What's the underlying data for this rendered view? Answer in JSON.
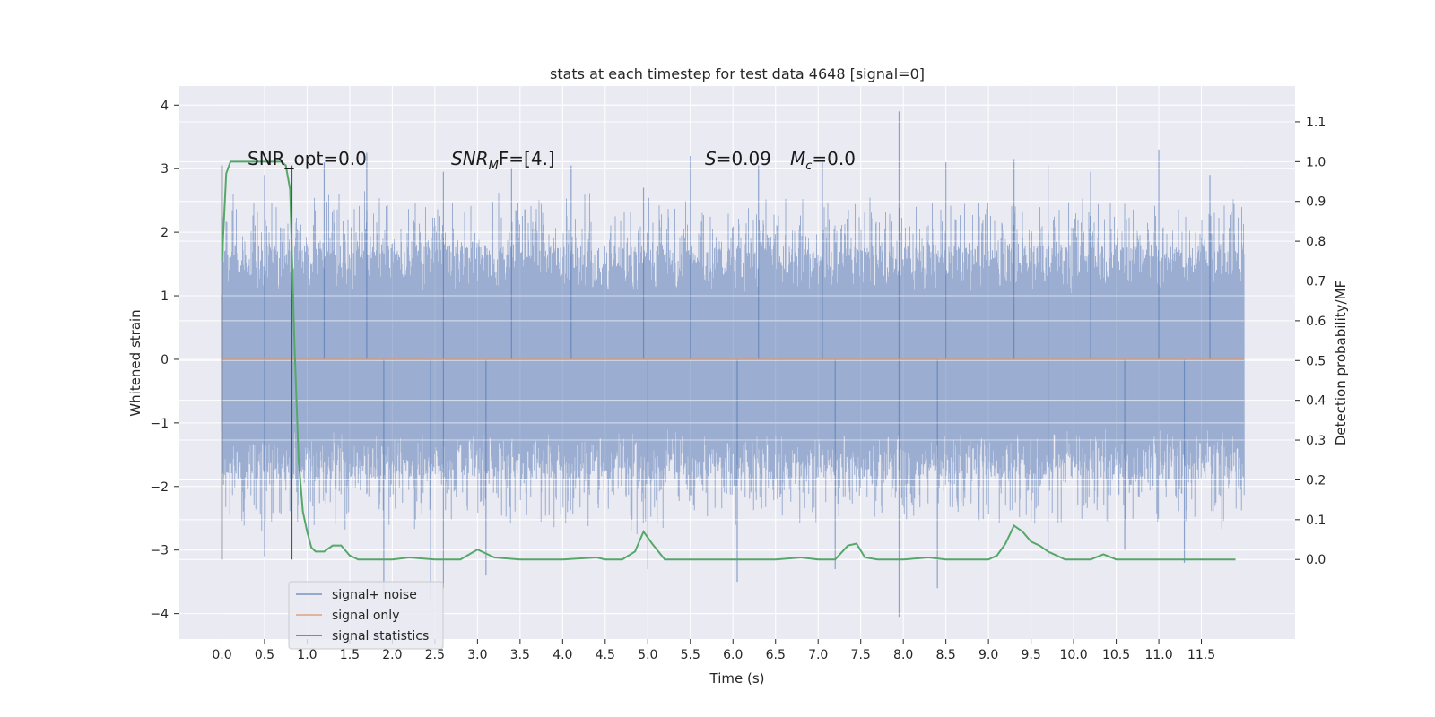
{
  "chart_data": {
    "type": "line",
    "title": "stats at each timestep for test data 4648 [signal=0]",
    "xlabel": "Time (s)",
    "ylabel": "Whitened strain",
    "ylabel_right": "Detection probability/MF",
    "xlim": [
      -0.5,
      12.6
    ],
    "ylim": [
      -4.4,
      4.3
    ],
    "ylim_right": [
      -0.2,
      1.19
    ],
    "x_ticks": [
      "0.0",
      "0.5",
      "1.0",
      "1.5",
      "2.0",
      "2.5",
      "3.0",
      "3.5",
      "4.0",
      "4.5",
      "5.0",
      "5.5",
      "6.0",
      "6.5",
      "7.0",
      "7.5",
      "8.0",
      "8.5",
      "9.0",
      "9.5",
      "10.0",
      "10.5",
      "11.0",
      "11.5"
    ],
    "y_ticks": [
      "4",
      "3",
      "2",
      "1",
      "0",
      "−1",
      "−2",
      "−3",
      "−4"
    ],
    "y_ticks_right": [
      "1.1",
      "1.0",
      "0.9",
      "0.8",
      "0.7",
      "0.6",
      "0.5",
      "0.4",
      "0.3",
      "0.2",
      "0.1",
      "0.0"
    ],
    "grid": true,
    "legend_position": "lower-left",
    "annotations": {
      "snr_opt": "SNR_opt=0.0",
      "snr_mf_var": "SNR",
      "snr_mf_sub": "M",
      "snr_mf_rest": "F=[4.]",
      "s_var": "S",
      "s_rest": "=0.09",
      "mc_var": "M",
      "mc_sub": "c",
      "mc_rest": "=0.0"
    },
    "window_lines_x": [
      0.0,
      0.82
    ],
    "series": [
      {
        "name": "signal+ noise",
        "color": "#4c72b0",
        "x_range": [
          0.0,
          12.0
        ],
        "core_amplitude": 1.8,
        "peaks_upper": [
          [
            0.5,
            2.9
          ],
          [
            1.2,
            3.1
          ],
          [
            1.7,
            3.25
          ],
          [
            2.6,
            2.95
          ],
          [
            3.4,
            3.0
          ],
          [
            4.1,
            3.05
          ],
          [
            4.95,
            2.7
          ],
          [
            5.5,
            3.2
          ],
          [
            6.3,
            3.05
          ],
          [
            7.05,
            3.1
          ],
          [
            7.95,
            3.9
          ],
          [
            8.5,
            3.1
          ],
          [
            9.3,
            3.15
          ],
          [
            9.7,
            3.05
          ],
          [
            10.2,
            2.95
          ],
          [
            11.0,
            3.3
          ],
          [
            11.6,
            2.9
          ]
        ],
        "peaks_lower": [
          [
            0.5,
            -3.1
          ],
          [
            1.9,
            -3.7
          ],
          [
            2.45,
            -3.8
          ],
          [
            2.6,
            -3.6
          ],
          [
            3.1,
            -3.4
          ],
          [
            5.0,
            -3.3
          ],
          [
            6.05,
            -3.5
          ],
          [
            7.2,
            -3.3
          ],
          [
            7.95,
            -4.05
          ],
          [
            8.4,
            -3.6
          ],
          [
            9.7,
            -3.1
          ],
          [
            10.6,
            -3.0
          ],
          [
            11.3,
            -3.2
          ]
        ]
      },
      {
        "name": "signal only",
        "color": "#dd8452",
        "x": [
          0.0,
          12.0
        ],
        "y": [
          0.0,
          0.0
        ]
      },
      {
        "name": "signal statistics",
        "color": "#55a868",
        "axis": "right",
        "x": [
          0.0,
          0.05,
          0.1,
          0.15,
          0.2,
          0.3,
          0.5,
          0.7,
          0.75,
          0.8,
          0.85,
          0.9,
          0.95,
          1.0,
          1.05,
          1.1,
          1.2,
          1.3,
          1.4,
          1.5,
          1.6,
          1.8,
          2.0,
          2.2,
          2.5,
          2.8,
          3.0,
          3.2,
          3.5,
          4.0,
          4.4,
          4.5,
          4.7,
          4.85,
          4.95,
          5.05,
          5.2,
          5.5,
          6.0,
          6.5,
          6.8,
          7.0,
          7.2,
          7.35,
          7.45,
          7.55,
          7.7,
          8.0,
          8.3,
          8.5,
          9.0,
          9.1,
          9.2,
          9.3,
          9.4,
          9.5,
          9.6,
          9.7,
          9.8,
          9.9,
          10.0,
          10.2,
          10.35,
          10.5,
          11.0,
          11.5,
          11.9
        ],
        "y": [
          0.75,
          0.97,
          1.0,
          1.0,
          1.0,
          1.0,
          1.0,
          1.0,
          0.99,
          0.93,
          0.55,
          0.25,
          0.12,
          0.07,
          0.03,
          0.02,
          0.02,
          0.035,
          0.035,
          0.01,
          0.0,
          0.0,
          0.0,
          0.005,
          0.0,
          0.0,
          0.025,
          0.005,
          0.0,
          0.0,
          0.005,
          0.0,
          0.0,
          0.02,
          0.07,
          0.04,
          0.0,
          0.0,
          0.0,
          0.0,
          0.005,
          0.0,
          0.0,
          0.035,
          0.04,
          0.005,
          0.0,
          0.0,
          0.005,
          0.0,
          0.0,
          0.01,
          0.04,
          0.085,
          0.07,
          0.045,
          0.035,
          0.02,
          0.01,
          0.0,
          0.0,
          0.0,
          0.013,
          0.0,
          0.0,
          0.0,
          0.0
        ]
      }
    ]
  }
}
